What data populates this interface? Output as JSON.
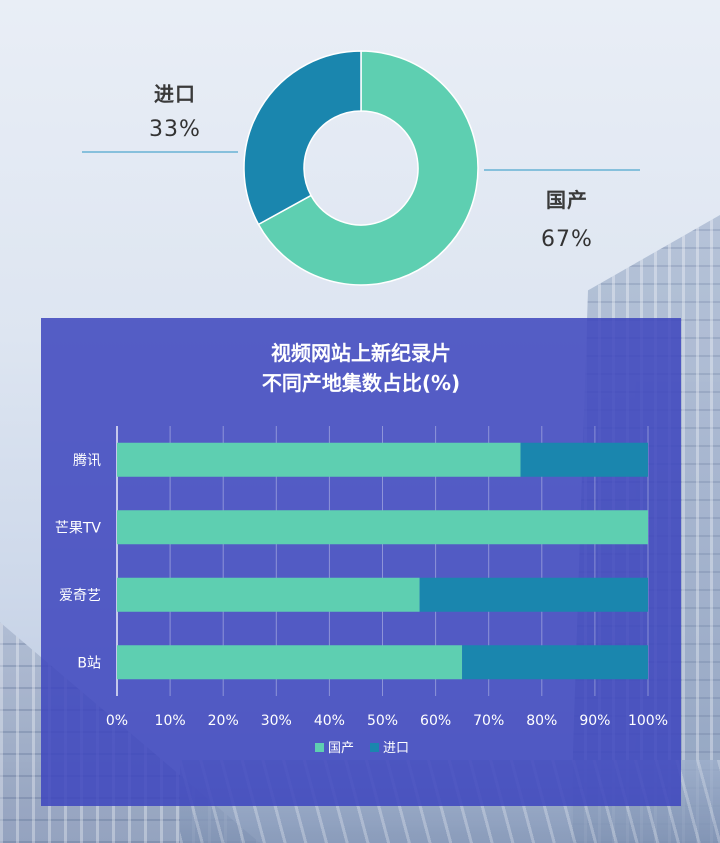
{
  "donut": {
    "slices": [
      {
        "label": "国产",
        "value": 67,
        "pct_text": "67%",
        "color": "#5ecfb1"
      },
      {
        "label": "进口",
        "value": 33,
        "pct_text": "33%",
        "color": "#1a86ae"
      }
    ]
  },
  "chart_data": {
    "type": "bar",
    "orientation": "horizontal",
    "stacked": true,
    "title_lines": [
      "视频网站上新纪录片",
      "不同产地集数占比(%)"
    ],
    "categories": [
      "腾讯",
      "芒果TV",
      "爱奇艺",
      "B站"
    ],
    "series": [
      {
        "name": "国产",
        "color": "#5ecfb1",
        "values": [
          76,
          100,
          57,
          65
        ]
      },
      {
        "name": "进口",
        "color": "#1a86ae",
        "values": [
          24,
          0,
          43,
          35
        ]
      }
    ],
    "xlim": [
      0,
      100
    ],
    "xticks": [
      "0%",
      "10%",
      "20%",
      "30%",
      "40%",
      "50%",
      "60%",
      "70%",
      "80%",
      "90%",
      "100%"
    ],
    "grid": true,
    "legend_position": "bottom"
  }
}
